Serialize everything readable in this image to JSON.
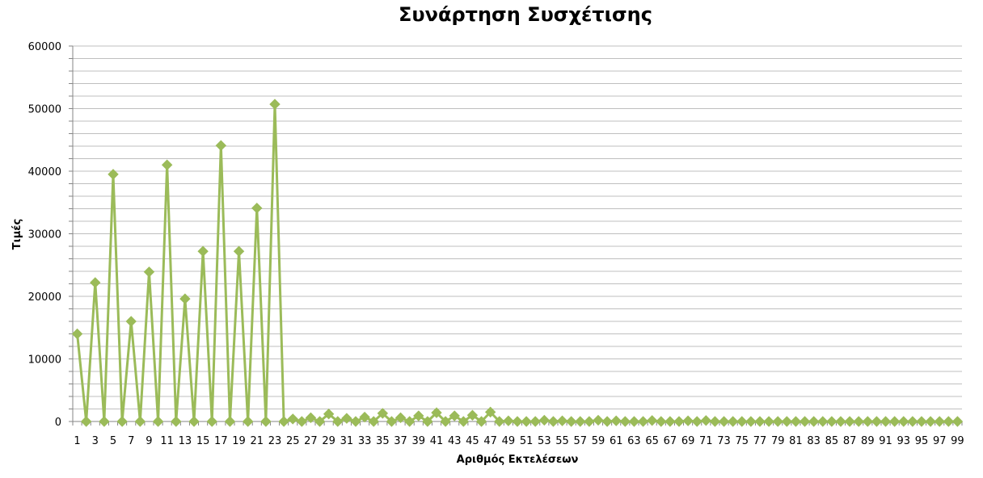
{
  "chart_data": {
    "type": "line",
    "title": "Συνάρτηση Συσχέτισης",
    "xlabel": "Αριθμός Εκτελέσεων",
    "ylabel": "Τιμές",
    "ylim": [
      0,
      60000
    ],
    "y_ticks": [
      "0",
      "10000",
      "20000",
      "30000",
      "40000",
      "50000",
      "60000"
    ],
    "x_tick_labels": [
      "1",
      "3",
      "5",
      "7",
      "9",
      "11",
      "13",
      "15",
      "17",
      "19",
      "21",
      "23",
      "25",
      "27",
      "29",
      "31",
      "33",
      "35",
      "37",
      "39",
      "41",
      "43",
      "45",
      "47",
      "49",
      "51",
      "53",
      "55",
      "57",
      "59",
      "61",
      "63",
      "65",
      "67",
      "69",
      "71",
      "73",
      "75",
      "77",
      "79",
      "81",
      "83",
      "85",
      "87",
      "89",
      "91",
      "93",
      "95",
      "97",
      "99"
    ],
    "grid": "horizontal",
    "legend": "none",
    "marker": "diamond",
    "line_color": "#9bbb59",
    "series": [
      {
        "x": [
          1,
          2,
          3,
          4,
          5,
          6,
          7,
          8,
          9,
          10,
          11,
          12,
          13,
          14,
          15,
          16,
          17,
          18,
          19,
          20,
          21,
          22,
          23,
          24,
          25,
          26,
          27,
          28,
          29,
          30,
          31,
          32,
          33,
          34,
          35,
          36,
          37,
          38,
          39,
          40,
          41,
          42,
          43,
          44,
          45,
          46,
          47,
          48,
          49,
          50,
          51,
          52,
          53,
          54,
          55,
          56,
          57,
          58,
          59,
          60,
          61,
          62,
          63,
          64,
          65,
          66,
          67,
          68,
          69,
          70,
          71,
          72,
          73,
          74,
          75,
          76,
          77,
          78,
          79,
          80,
          81,
          82,
          83,
          84,
          85,
          86,
          87,
          88,
          89,
          90,
          91,
          92,
          93,
          94,
          95,
          96,
          97,
          98,
          99
        ],
        "values": [
          14000,
          0,
          22200,
          0,
          39500,
          0,
          16000,
          0,
          23900,
          0,
          41000,
          0,
          19600,
          0,
          27200,
          0,
          44100,
          0,
          27200,
          0,
          34100,
          0,
          50700,
          0,
          400,
          0,
          600,
          0,
          1200,
          0,
          500,
          0,
          700,
          0,
          1300,
          0,
          600,
          0,
          900,
          0,
          1400,
          0,
          900,
          0,
          1000,
          0,
          1500,
          0,
          100,
          0,
          0,
          0,
          200,
          0,
          100,
          0,
          0,
          0,
          200,
          0,
          100,
          0,
          0,
          0,
          150,
          0,
          0,
          0,
          100,
          0,
          150,
          0,
          0,
          0,
          0,
          0,
          0,
          0,
          0,
          0,
          0,
          0,
          0,
          0,
          0,
          0,
          0,
          0,
          0,
          0,
          0,
          0,
          0,
          0,
          0,
          0,
          0,
          0,
          0
        ]
      }
    ]
  }
}
